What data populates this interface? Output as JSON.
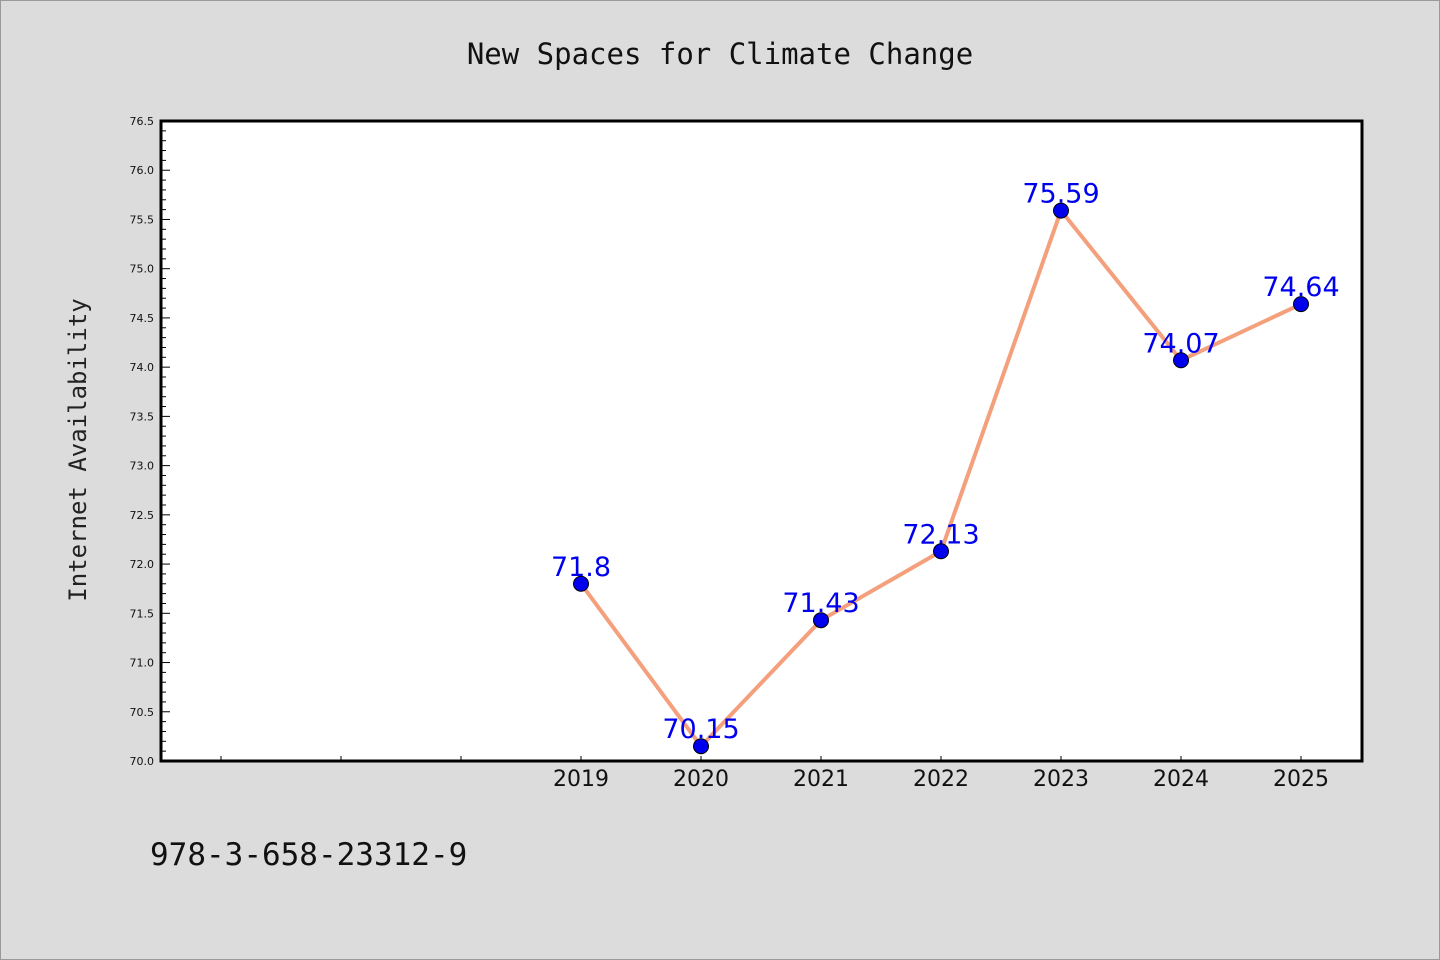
{
  "chart_data": {
    "type": "line",
    "title": "New Spaces for Climate Change",
    "xlabel": "",
    "ylabel": "Internet Availability",
    "x": [
      "",
      "",
      "",
      "2019",
      "2020",
      "2021",
      "2022",
      "2023",
      "2024",
      "2025"
    ],
    "series": [
      {
        "values": [
          null,
          null,
          null,
          71.8,
          70.15,
          71.43,
          72.13,
          75.59,
          74.07,
          74.64
        ],
        "data_labels": [
          "",
          "",
          "",
          "71.8",
          "70.15",
          "71.43",
          "72.13",
          "75.59",
          "74.07",
          "74.64"
        ]
      }
    ],
    "ylim": [
      70.0,
      76.5
    ],
    "yticks": [
      "70.0",
      "70.5",
      "71.0",
      "71.5",
      "72.0",
      "72.5",
      "73.0",
      "73.5",
      "74.0",
      "74.5",
      "75.0",
      "75.5",
      "76.0",
      "76.5"
    ],
    "grid": false,
    "legend": "none"
  },
  "footer": {
    "isbn": "978-3-658-23312-9"
  },
  "colors": {
    "line": "#f4a07c",
    "marker": "#0000ee",
    "label": "#0000ee",
    "background": "#dcdcdc",
    "plot_background": "#ffffff"
  }
}
